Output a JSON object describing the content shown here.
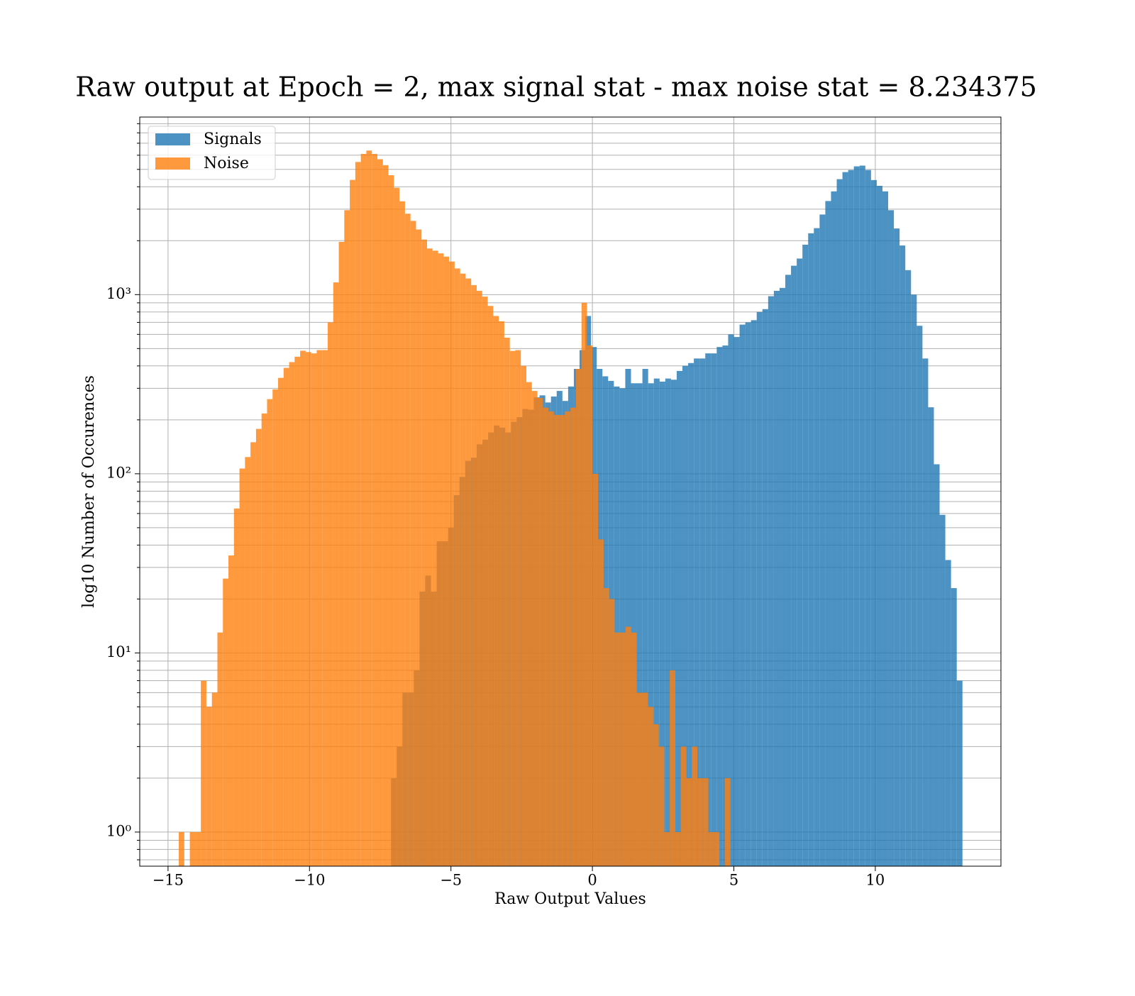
{
  "chart_data": {
    "type": "histogram",
    "title": "Raw output at Epoch = 2, max signal stat - max noise stat = 8.234375",
    "x_label": "Raw Output Values",
    "y_label": "log10 Number of Occurences",
    "xlim": [
      -16.0,
      14.44
    ],
    "ylim": [
      0.645,
      9800
    ],
    "log_y": true,
    "grid": true,
    "legend": "upper left",
    "xticks": [
      {
        "value": -15,
        "label": "−15"
      },
      {
        "value": -10,
        "label": "−10"
      },
      {
        "value": -5,
        "label": "−5"
      },
      0,
      5,
      10
    ],
    "yticks": [
      {
        "value": 1,
        "label": "10⁰"
      },
      {
        "value": 10,
        "label": "10¹"
      },
      {
        "value": 100,
        "label": "10²"
      },
      {
        "value": 1000,
        "label": "10³"
      }
    ],
    "yticks_minor": [
      0.7,
      0.8,
      0.9,
      2,
      3,
      4,
      5,
      6,
      7,
      8,
      9,
      20,
      30,
      40,
      50,
      60,
      70,
      80,
      90,
      200,
      300,
      400,
      500,
      600,
      700,
      800,
      900,
      2000,
      3000,
      4000,
      5000,
      6000,
      7000,
      8000,
      9000
    ],
    "series": [
      {
        "name": "Signals",
        "color": "#1f77b4",
        "bins": [
          -7.12,
          -6.918,
          -6.716,
          -6.514,
          -6.312,
          -6.11,
          -5.908,
          -5.706,
          -5.504,
          -5.302,
          -5.1,
          -4.898,
          -4.696,
          -4.494,
          -4.292,
          -4.09,
          -3.888,
          -3.686,
          -3.484,
          -3.282,
          -3.08,
          -2.878,
          -2.676,
          -2.474,
          -2.272,
          -2.07,
          -1.868,
          -1.666,
          -1.464,
          -1.262,
          -1.06,
          -0.858,
          -0.656,
          -0.454,
          -0.252,
          -0.05,
          0.152,
          0.354,
          0.556,
          0.758,
          0.96,
          1.162,
          1.364,
          1.566,
          1.768,
          1.97,
          2.172,
          2.374,
          2.576,
          2.778,
          2.98,
          3.182,
          3.384,
          3.586,
          3.788,
          3.99,
          4.192,
          4.394,
          4.596,
          4.798,
          5.0,
          5.202,
          5.404,
          5.606,
          5.808,
          6.01,
          6.212,
          6.414,
          6.616,
          6.818,
          7.02,
          7.222,
          7.424,
          7.626,
          7.828,
          8.03,
          8.232,
          8.434,
          8.636,
          8.838,
          9.04,
          9.242,
          9.444,
          9.646,
          9.848,
          10.05,
          10.252,
          10.454,
          10.656,
          10.858,
          11.06,
          11.262,
          11.464,
          11.666,
          11.868,
          12.07,
          12.272,
          12.474,
          12.676,
          12.878,
          13.08
        ],
        "values": [
          2,
          3,
          6,
          6,
          8,
          22,
          27,
          22,
          42,
          42,
          50,
          76,
          96,
          118,
          123,
          146,
          155,
          170,
          186,
          181,
          170,
          195,
          207,
          230,
          228,
          267,
          274,
          250,
          270,
          290,
          255,
          307,
          385,
          490,
          760,
          510,
          385,
          350,
          330,
          307,
          300,
          385,
          320,
          320,
          385,
          320,
          340,
          327,
          340,
          335,
          375,
          400,
          415,
          440,
          440,
          470,
          470,
          510,
          520,
          600,
          580,
          680,
          700,
          720,
          800,
          830,
          980,
          1050,
          1090,
          1290,
          1450,
          1590,
          1900,
          2200,
          2350,
          2800,
          3330,
          3770,
          4410,
          4830,
          4960,
          5200,
          5250,
          4960,
          4360,
          4050,
          3770,
          2960,
          2340,
          1880,
          1370,
          1000,
          670,
          440,
          235,
          113,
          59,
          33,
          23,
          7
        ]
      },
      {
        "name": "Noise",
        "color": "#ff7f0e",
        "bins": [
          -14.62,
          -14.425,
          -14.23,
          -14.035,
          -13.84,
          -13.645,
          -13.45,
          -13.255,
          -13.06,
          -12.865,
          -12.67,
          -12.475,
          -12.28,
          -12.085,
          -11.89,
          -11.695,
          -11.5,
          -11.305,
          -11.11,
          -10.915,
          -10.72,
          -10.525,
          -10.33,
          -10.135,
          -9.94,
          -9.745,
          -9.55,
          -9.355,
          -9.16,
          -8.965,
          -8.77,
          -8.575,
          -8.38,
          -8.185,
          -7.99,
          -7.795,
          -7.6,
          -7.405,
          -7.21,
          -7.015,
          -6.82,
          -6.625,
          -6.43,
          -6.235,
          -6.04,
          -5.845,
          -5.65,
          -5.455,
          -5.26,
          -5.065,
          -4.87,
          -4.675,
          -4.48,
          -4.285,
          -4.09,
          -3.895,
          -3.7,
          -3.505,
          -3.31,
          -3.115,
          -2.92,
          -2.725,
          -2.53,
          -2.335,
          -2.14,
          -1.945,
          -1.75,
          -1.555,
          -1.36,
          -1.165,
          -0.97,
          -0.775,
          -0.58,
          -0.385,
          -0.19,
          0.005,
          0.2,
          0.395,
          0.59,
          0.785,
          0.98,
          1.175,
          1.37,
          1.565,
          1.76,
          1.955,
          2.15,
          2.345,
          2.54,
          2.735,
          2.93,
          3.125,
          3.32,
          3.515,
          3.71,
          3.905,
          4.1,
          4.295,
          4.49,
          4.685,
          4.88
        ],
        "values": [
          1,
          0,
          1,
          1,
          7,
          5,
          6,
          13,
          26,
          35,
          64,
          107,
          124,
          150,
          178,
          217,
          261,
          296,
          343,
          390,
          420,
          450,
          486,
          478,
          470,
          490,
          490,
          700,
          1170,
          1970,
          2960,
          4370,
          5500,
          6100,
          6370,
          6100,
          5700,
          5280,
          4640,
          3950,
          3320,
          2830,
          2580,
          2310,
          2030,
          1810,
          1760,
          1700,
          1630,
          1530,
          1400,
          1310,
          1230,
          1130,
          1050,
          975,
          865,
          760,
          710,
          575,
          485,
          490,
          400,
          325,
          290,
          265,
          234,
          223,
          213,
          213,
          223,
          234,
          385,
          900,
          520,
          100,
          43,
          23,
          20,
          13,
          13,
          14,
          13,
          6,
          6,
          5,
          4,
          3,
          1,
          8,
          1,
          3,
          2,
          3,
          2,
          2,
          1,
          1,
          0,
          2
        ]
      }
    ]
  }
}
